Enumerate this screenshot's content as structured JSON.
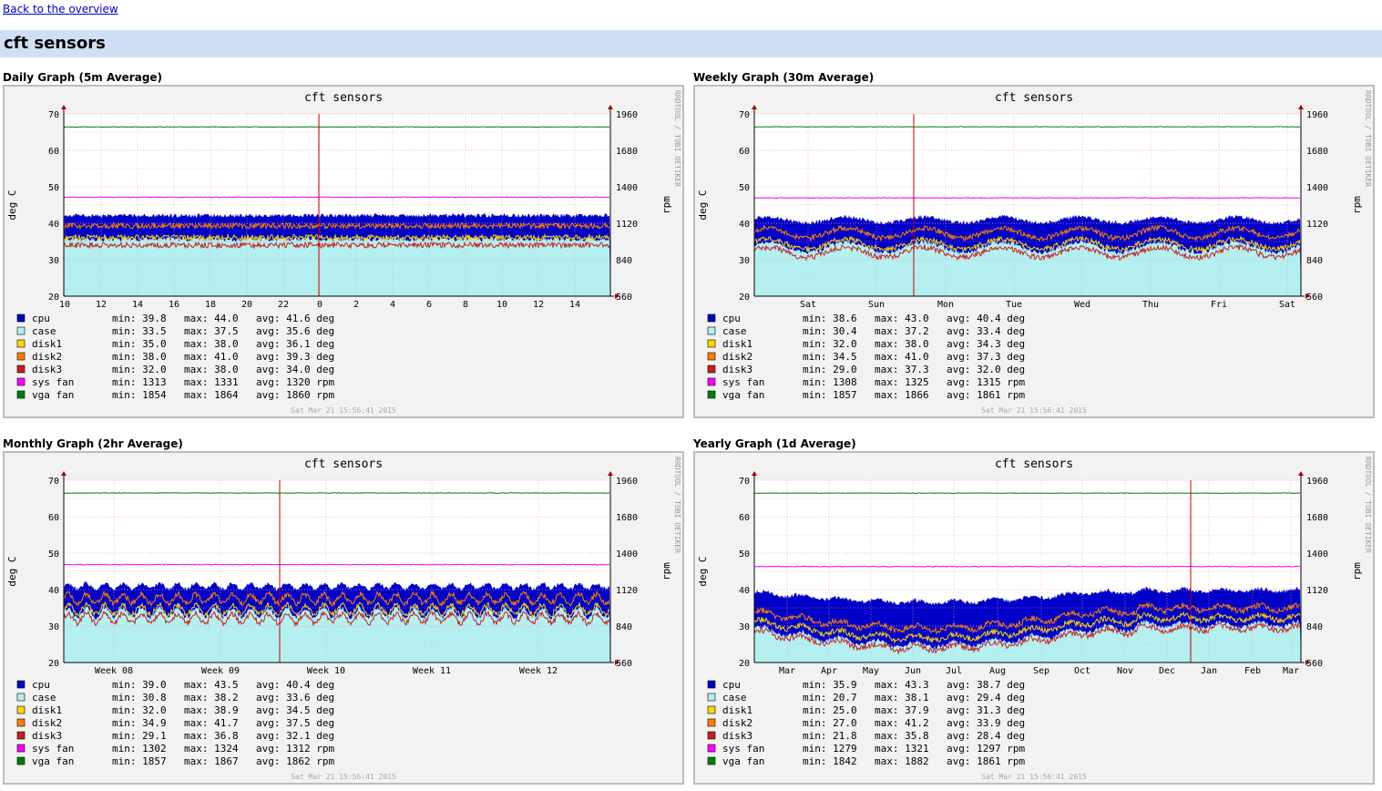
{
  "nav": {
    "back_label": "Back to the overview"
  },
  "page": {
    "title": "cft sensors"
  },
  "colors": {
    "frame_bg": "#f2f2f2",
    "plot_bg": "#ffffff",
    "grid": "#f4a0a0",
    "cpu": "#0000c8",
    "case": "#b4f0f0",
    "disk1": "#ffd700",
    "disk2": "#ff8000",
    "disk3": "#c81e1e",
    "sys_fan": "#ff00ff",
    "vga_fan": "#008000",
    "now_line": "#c80000"
  },
  "graphs": [
    {
      "heading": "Daily Graph (5m Average)",
      "title": "cft sensors",
      "ylabel": "deg C",
      "y2label": "rpm",
      "watermark": "RRDTOOL / TOBI OETIKER",
      "timestamp": "Sat Mar 21 15:56:41 2015",
      "yticks": [
        "70",
        "60",
        "50",
        "40",
        "30",
        "20"
      ],
      "y2ticks": [
        "1960",
        "1680",
        "1400",
        "1120",
        "840",
        "560"
      ],
      "xticks": [
        "10",
        "12",
        "14",
        "16",
        "18",
        "20",
        "22",
        "0",
        "2",
        "4",
        "6",
        "8",
        "10",
        "12",
        "14"
      ],
      "legend": [
        {
          "name": "cpu",
          "key": "cpu",
          "min": "min: 39.8",
          "max": "max: 44.0",
          "avg": "avg: 41.6 deg"
        },
        {
          "name": "case",
          "key": "case",
          "min": "min: 33.5",
          "max": "max: 37.5",
          "avg": "avg: 35.6 deg"
        },
        {
          "name": "disk1",
          "key": "disk1",
          "min": "min: 35.0",
          "max": "max: 38.0",
          "avg": "avg: 36.1 deg"
        },
        {
          "name": "disk2",
          "key": "disk2",
          "min": "min: 38.0",
          "max": "max: 41.0",
          "avg": "avg: 39.3 deg"
        },
        {
          "name": "disk3",
          "key": "disk3",
          "min": "min: 32.0",
          "max": "max: 38.0",
          "avg": "avg: 34.0 deg"
        },
        {
          "name": "sys fan",
          "key": "sys_fan",
          "min": "min: 1313",
          "max": "max: 1331",
          "avg": "avg: 1320 rpm"
        },
        {
          "name": "vga fan",
          "key": "vga_fan",
          "min": "min: 1854",
          "max": "max: 1864",
          "avg": "avg: 1860 rpm"
        }
      ]
    },
    {
      "heading": "Weekly Graph (30m Average)",
      "title": "cft sensors",
      "ylabel": "deg C",
      "y2label": "rpm",
      "watermark": "RRDTOOL / TOBI OETIKER",
      "timestamp": "Sat Mar 21 15:56:41 2015",
      "yticks": [
        "70",
        "60",
        "50",
        "40",
        "30",
        "20"
      ],
      "y2ticks": [
        "1960",
        "1680",
        "1400",
        "1120",
        "840",
        "560"
      ],
      "xticks": [
        "Sat",
        "Sun",
        "Mon",
        "Tue",
        "Wed",
        "Thu",
        "Fri",
        "Sat"
      ],
      "legend": [
        {
          "name": "cpu",
          "key": "cpu",
          "min": "min: 38.6",
          "max": "max: 43.0",
          "avg": "avg: 40.4 deg"
        },
        {
          "name": "case",
          "key": "case",
          "min": "min: 30.4",
          "max": "max: 37.2",
          "avg": "avg: 33.4 deg"
        },
        {
          "name": "disk1",
          "key": "disk1",
          "min": "min: 32.0",
          "max": "max: 38.0",
          "avg": "avg: 34.3 deg"
        },
        {
          "name": "disk2",
          "key": "disk2",
          "min": "min: 34.5",
          "max": "max: 41.0",
          "avg": "avg: 37.3 deg"
        },
        {
          "name": "disk3",
          "key": "disk3",
          "min": "min: 29.0",
          "max": "max: 37.3",
          "avg": "avg: 32.0 deg"
        },
        {
          "name": "sys fan",
          "key": "sys_fan",
          "min": "min: 1308",
          "max": "max: 1325",
          "avg": "avg: 1315 rpm"
        },
        {
          "name": "vga fan",
          "key": "vga_fan",
          "min": "min: 1857",
          "max": "max: 1866",
          "avg": "avg: 1861 rpm"
        }
      ]
    },
    {
      "heading": "Monthly Graph (2hr Average)",
      "title": "cft sensors",
      "ylabel": "deg C",
      "y2label": "rpm",
      "watermark": "RRDTOOL / TOBI OETIKER",
      "timestamp": "Sat Mar 21 15:56:41 2015",
      "yticks": [
        "70",
        "60",
        "50",
        "40",
        "30",
        "20"
      ],
      "y2ticks": [
        "1960",
        "1680",
        "1400",
        "1120",
        "840",
        "560"
      ],
      "xticks": [
        "Week 08",
        "Week 09",
        "Week 10",
        "Week 11",
        "Week 12"
      ],
      "legend": [
        {
          "name": "cpu",
          "key": "cpu",
          "min": "min: 39.0",
          "max": "max: 43.5",
          "avg": "avg: 40.4 deg"
        },
        {
          "name": "case",
          "key": "case",
          "min": "min: 30.8",
          "max": "max: 38.2",
          "avg": "avg: 33.6 deg"
        },
        {
          "name": "disk1",
          "key": "disk1",
          "min": "min: 32.0",
          "max": "max: 38.9",
          "avg": "avg: 34.5 deg"
        },
        {
          "name": "disk2",
          "key": "disk2",
          "min": "min: 34.9",
          "max": "max: 41.7",
          "avg": "avg: 37.5 deg"
        },
        {
          "name": "disk3",
          "key": "disk3",
          "min": "min: 29.1",
          "max": "max: 36.8",
          "avg": "avg: 32.1 deg"
        },
        {
          "name": "sys fan",
          "key": "sys_fan",
          "min": "min: 1302",
          "max": "max: 1324",
          "avg": "avg: 1312 rpm"
        },
        {
          "name": "vga fan",
          "key": "vga_fan",
          "min": "min: 1857",
          "max": "max: 1867",
          "avg": "avg: 1862 rpm"
        }
      ]
    },
    {
      "heading": "Yearly Graph (1d Average)",
      "title": "cft sensors",
      "ylabel": "deg C",
      "y2label": "rpm",
      "watermark": "RRDTOOL / TOBI OETIKER",
      "timestamp": "Sat Mar 21 15:56:41 2015",
      "yticks": [
        "70",
        "60",
        "50",
        "40",
        "30",
        "20"
      ],
      "y2ticks": [
        "1960",
        "1680",
        "1400",
        "1120",
        "840",
        "560"
      ],
      "xticks": [
        "Mar",
        "Apr",
        "May",
        "Jun",
        "Jul",
        "Aug",
        "Sep",
        "Oct",
        "Nov",
        "Dec",
        "Jan",
        "Feb",
        "Mar"
      ],
      "legend": [
        {
          "name": "cpu",
          "key": "cpu",
          "min": "min: 35.9",
          "max": "max: 43.3",
          "avg": "avg: 38.7 deg"
        },
        {
          "name": "case",
          "key": "case",
          "min": "min: 20.7",
          "max": "max: 38.1",
          "avg": "avg: 29.4 deg"
        },
        {
          "name": "disk1",
          "key": "disk1",
          "min": "min: 25.0",
          "max": "max: 37.9",
          "avg": "avg: 31.3 deg"
        },
        {
          "name": "disk2",
          "key": "disk2",
          "min": "min: 27.0",
          "max": "max: 41.2",
          "avg": "avg: 33.9 deg"
        },
        {
          "name": "disk3",
          "key": "disk3",
          "min": "min: 21.8",
          "max": "max: 35.8",
          "avg": "avg: 28.4 deg"
        },
        {
          "name": "sys fan",
          "key": "sys_fan",
          "min": "min: 1279",
          "max": "max: 1321",
          "avg": "avg: 1297 rpm"
        },
        {
          "name": "vga fan",
          "key": "vga_fan",
          "min": "min: 1842",
          "max": "max: 1882",
          "avg": "avg: 1861 rpm"
        }
      ]
    }
  ],
  "chart_data": [
    {
      "type": "area",
      "title": "cft sensors",
      "ylabel": "deg C",
      "y2label": "rpm",
      "ylim": [
        20,
        70
      ],
      "y2lim": [
        560,
        1960
      ],
      "grid": true,
      "legend_placement": "bottom",
      "categories": [
        "10",
        "12",
        "14",
        "16",
        "18",
        "20",
        "22",
        "0",
        "2",
        "4",
        "6",
        "8",
        "10",
        "12",
        "14"
      ],
      "series": [
        {
          "name": "cpu",
          "min": 39.8,
          "max": 44.0,
          "avg": 41.6
        },
        {
          "name": "case",
          "min": 33.5,
          "max": 37.5,
          "avg": 35.6
        },
        {
          "name": "disk1",
          "min": 35.0,
          "max": 38.0,
          "avg": 36.1
        },
        {
          "name": "disk2",
          "min": 38.0,
          "max": 41.0,
          "avg": 39.3
        },
        {
          "name": "disk3",
          "min": 32.0,
          "max": 38.0,
          "avg": 34.0
        },
        {
          "name": "sys fan",
          "min": 1313,
          "max": 1331,
          "avg": 1320
        },
        {
          "name": "vga fan",
          "min": 1854,
          "max": 1864,
          "avg": 1860
        }
      ]
    },
    {
      "type": "area",
      "title": "cft sensors",
      "ylabel": "deg C",
      "y2label": "rpm",
      "ylim": [
        20,
        70
      ],
      "y2lim": [
        560,
        1960
      ],
      "grid": true,
      "legend_placement": "bottom",
      "categories": [
        "Sat",
        "Sun",
        "Mon",
        "Tue",
        "Wed",
        "Thu",
        "Fri",
        "Sat"
      ],
      "series": [
        {
          "name": "cpu",
          "min": 38.6,
          "max": 43.0,
          "avg": 40.4
        },
        {
          "name": "case",
          "min": 30.4,
          "max": 37.2,
          "avg": 33.4
        },
        {
          "name": "disk1",
          "min": 32.0,
          "max": 38.0,
          "avg": 34.3
        },
        {
          "name": "disk2",
          "min": 34.5,
          "max": 41.0,
          "avg": 37.3
        },
        {
          "name": "disk3",
          "min": 29.0,
          "max": 37.3,
          "avg": 32.0
        },
        {
          "name": "sys fan",
          "min": 1308,
          "max": 1325,
          "avg": 1315
        },
        {
          "name": "vga fan",
          "min": 1857,
          "max": 1866,
          "avg": 1861
        }
      ]
    },
    {
      "type": "area",
      "title": "cft sensors",
      "ylabel": "deg C",
      "y2label": "rpm",
      "ylim": [
        20,
        70
      ],
      "y2lim": [
        560,
        1960
      ],
      "grid": true,
      "legend_placement": "bottom",
      "categories": [
        "Week 08",
        "Week 09",
        "Week 10",
        "Week 11",
        "Week 12"
      ],
      "series": [
        {
          "name": "cpu",
          "min": 39.0,
          "max": 43.5,
          "avg": 40.4
        },
        {
          "name": "case",
          "min": 30.8,
          "max": 38.2,
          "avg": 33.6
        },
        {
          "name": "disk1",
          "min": 32.0,
          "max": 38.9,
          "avg": 34.5
        },
        {
          "name": "disk2",
          "min": 34.9,
          "max": 41.7,
          "avg": 37.5
        },
        {
          "name": "disk3",
          "min": 29.1,
          "max": 36.8,
          "avg": 32.1
        },
        {
          "name": "sys fan",
          "min": 1302,
          "max": 1324,
          "avg": 1312
        },
        {
          "name": "vga fan",
          "min": 1857,
          "max": 1867,
          "avg": 1862
        }
      ]
    },
    {
      "type": "area",
      "title": "cft sensors",
      "ylabel": "deg C",
      "y2label": "rpm",
      "ylim": [
        20,
        70
      ],
      "y2lim": [
        560,
        1960
      ],
      "grid": true,
      "legend_placement": "bottom",
      "categories": [
        "Mar",
        "Apr",
        "May",
        "Jun",
        "Jul",
        "Aug",
        "Sep",
        "Oct",
        "Nov",
        "Dec",
        "Jan",
        "Feb",
        "Mar"
      ],
      "series": [
        {
          "name": "cpu",
          "min": 35.9,
          "max": 43.3,
          "avg": 38.7
        },
        {
          "name": "case",
          "min": 20.7,
          "max": 38.1,
          "avg": 29.4
        },
        {
          "name": "disk1",
          "min": 25.0,
          "max": 37.9,
          "avg": 31.3
        },
        {
          "name": "disk2",
          "min": 27.0,
          "max": 41.2,
          "avg": 33.9
        },
        {
          "name": "disk3",
          "min": 21.8,
          "max": 35.8,
          "avg": 28.4
        },
        {
          "name": "sys fan",
          "min": 1279,
          "max": 1321,
          "avg": 1297
        },
        {
          "name": "vga fan",
          "min": 1842,
          "max": 1882,
          "avg": 1861
        }
      ]
    }
  ]
}
